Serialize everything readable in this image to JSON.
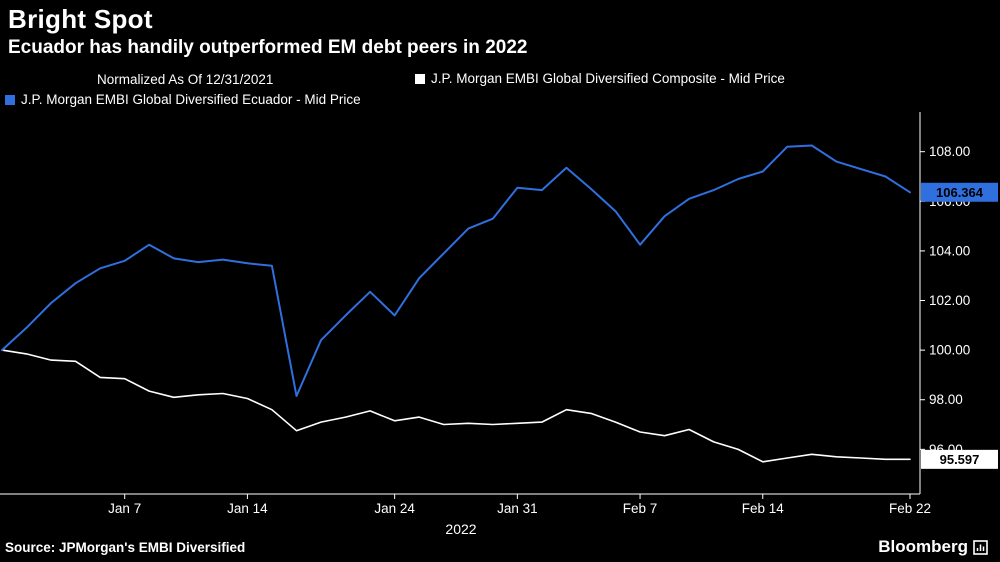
{
  "header": {
    "title": "Bright Spot",
    "subtitle": "Ecuador has handily outperformed EM debt peers in 2022"
  },
  "legend": {
    "normalized": "Normalized As Of 12/31/2021"
  },
  "colors": {
    "background": "#000000",
    "axis": "#ffffff",
    "composite_series": "#ffffff",
    "ecuador_series": "#2f6fde"
  },
  "chart_data": {
    "type": "line",
    "title": "Bright Spot",
    "subtitle": "Ecuador has handily outperformed EM debt peers in 2022",
    "xlabel": "2022",
    "ylabel": "",
    "grid": false,
    "legend_position": "top",
    "x_axis_note": "trading-day index from 12/31/2021 to 2/22/2022",
    "ylim": [
      94.2,
      109.6
    ],
    "y_ticks": [
      {
        "value": 96,
        "label": "96.00"
      },
      {
        "value": 98,
        "label": "98.00"
      },
      {
        "value": 100,
        "label": "100.00"
      },
      {
        "value": 102,
        "label": "102.00"
      },
      {
        "value": 104,
        "label": "104.00"
      },
      {
        "value": 106,
        "label": "106.00"
      },
      {
        "value": 108,
        "label": "108.00"
      }
    ],
    "x_ticks": [
      {
        "index": 5,
        "label": "Jan 7"
      },
      {
        "index": 10,
        "label": "Jan 14"
      },
      {
        "index": 16,
        "label": "Jan 24"
      },
      {
        "index": 21,
        "label": "Jan 31"
      },
      {
        "index": 26,
        "label": "Feb 7"
      },
      {
        "index": 31,
        "label": "Feb 14"
      },
      {
        "index": 37,
        "label": "Feb 22"
      }
    ],
    "series": [
      {
        "id": "composite",
        "name": "J.P. Morgan EMBI Global Diversified Composite - Mid Price",
        "color": "#ffffff",
        "last_price_label": "95.597",
        "values": [
          100.0,
          99.85,
          99.6,
          99.55,
          98.9,
          98.85,
          98.35,
          98.1,
          98.2,
          98.25,
          98.05,
          97.6,
          96.75,
          97.1,
          97.3,
          97.55,
          97.15,
          97.3,
          97.0,
          97.05,
          97.0,
          97.05,
          97.1,
          97.6,
          97.45,
          97.1,
          96.7,
          96.55,
          96.8,
          96.3,
          96.0,
          95.5,
          95.65,
          95.8,
          95.7,
          95.65,
          95.6,
          95.597
        ]
      },
      {
        "id": "ecuador",
        "name": "J.P. Morgan EMBI Global Diversified Ecuador - Mid Price",
        "color": "#2f6fde",
        "last_price_label": "106.364",
        "values": [
          100.0,
          100.9,
          101.9,
          102.7,
          103.3,
          103.6,
          104.25,
          103.7,
          103.55,
          103.65,
          103.5,
          103.4,
          98.15,
          100.4,
          101.4,
          102.35,
          101.4,
          102.9,
          103.9,
          104.9,
          105.3,
          106.55,
          106.45,
          107.35,
          106.5,
          105.6,
          104.25,
          105.4,
          106.1,
          106.45,
          106.9,
          107.2,
          108.2,
          108.25,
          107.6,
          107.3,
          107.0,
          106.364
        ]
      }
    ]
  },
  "footer": {
    "source": "Source: JPMorgan's EMBI Diversified",
    "brand": "Bloomberg"
  }
}
